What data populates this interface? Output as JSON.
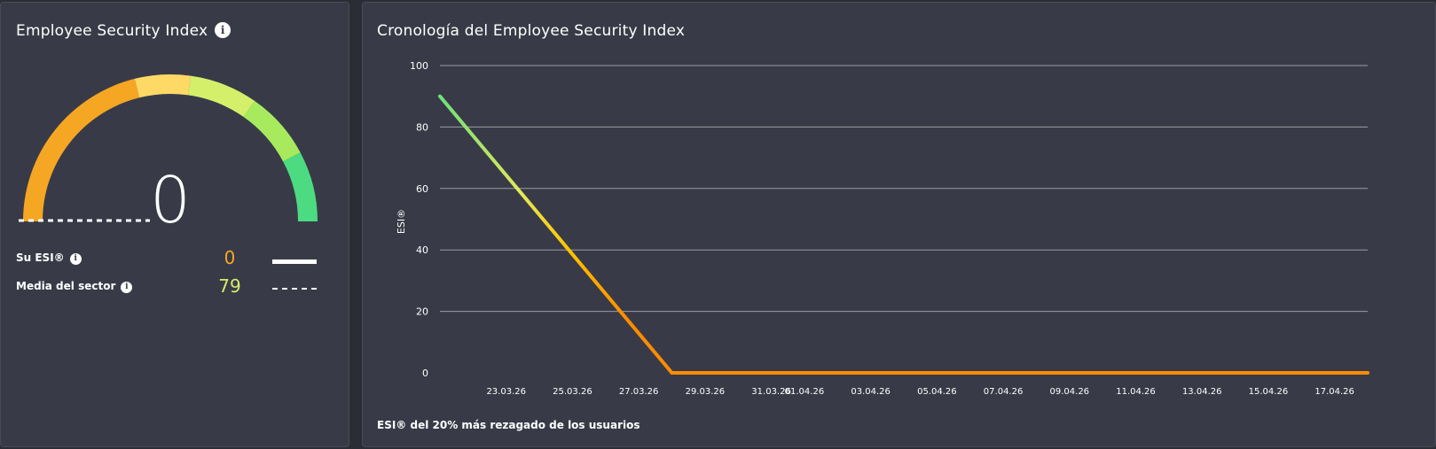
{
  "left_card": {
    "title": "Employee Security Index",
    "gauge": {
      "value": 0,
      "display_value": "0",
      "sector_average": 79,
      "max": 100
    },
    "legend": [
      {
        "label": "Su ESI®",
        "value": "0",
        "value_color": "#f5a623",
        "line_style": "solid"
      },
      {
        "label": "Media del sector",
        "value": "79",
        "value_color": "#d9e96b",
        "line_style": "dashed"
      }
    ]
  },
  "right_card": {
    "title": "Cronología del Employee Security Index",
    "footnote": "ESI® del 20% más rezagado de los usuarios"
  },
  "colors": {
    "card_bg": "#383b47",
    "page_bg": "#2b2d35",
    "orange": "#f5a623",
    "line_orange": "#ff8c00",
    "yellow": "#ffd966",
    "lime": "#d4ef6a",
    "light_green": "#a8ea5e",
    "green": "#4cdb80",
    "grid": "#9a9ca4"
  },
  "chart_data": {
    "type": "line",
    "ylabel": "ESI®",
    "xlabel": "",
    "ylim": [
      0,
      100
    ],
    "yticks": [
      0,
      20,
      40,
      60,
      80,
      100
    ],
    "xtick_labels": [
      "23.03.26",
      "25.03.26",
      "27.03.26",
      "29.03.26",
      "31.03.26",
      "01.04.26",
      "03.04.26",
      "05.04.26",
      "07.04.26",
      "09.04.26",
      "11.04.26",
      "13.04.26",
      "15.04.26",
      "17.04.26"
    ],
    "grid": true,
    "series": [
      {
        "color_scale": "value-based gradient (green high, orange low)",
        "points": [
          {
            "x": "21.03.26",
            "y": 90
          },
          {
            "x": "28.03.26",
            "y": 0
          },
          {
            "x": "18.04.26",
            "y": 0
          }
        ]
      }
    ]
  }
}
